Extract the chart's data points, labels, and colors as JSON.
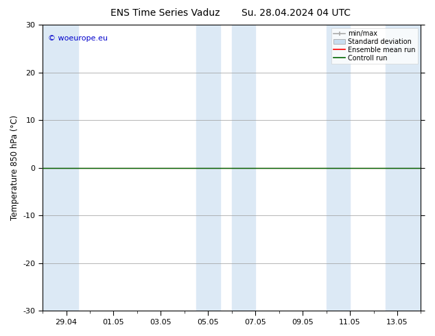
{
  "title_left": "ENS Time Series Vaduz",
  "title_right": "Su. 28.04.2024 04 UTC",
  "ylabel": "Temperature 850 hPa (°C)",
  "ylim": [
    -30,
    30
  ],
  "yticks": [
    -30,
    -20,
    -10,
    0,
    10,
    20,
    30
  ],
  "bg_color": "#ffffff",
  "plot_bg_color": "#ffffff",
  "shading_color": "#dce9f5",
  "legend_labels": [
    "min/max",
    "Standard deviation",
    "Ensemble mean run",
    "Controll run"
  ],
  "legend_colors": [
    "#aaaaaa",
    "#bbccdd",
    "#ff0000",
    "#006600"
  ],
  "watermark": "© woeurope.eu",
  "watermark_color": "#0000cc",
  "x_tick_labels": [
    "29.04",
    "01.05",
    "03.05",
    "05.05",
    "07.05",
    "09.05",
    "11.05",
    "13.05"
  ],
  "xtick_pos": [
    1,
    3,
    5,
    7,
    9,
    11,
    13,
    15
  ],
  "xlim": [
    0,
    16
  ],
  "shaded_regions": [
    [
      0.0,
      1.5
    ],
    [
      6.5,
      7.5
    ],
    [
      8.0,
      9.0
    ],
    [
      12.0,
      13.0
    ],
    [
      14.5,
      16.0
    ]
  ],
  "control_run_y": 0.0,
  "ensemble_mean_y": 0.0,
  "title_fontsize": 10,
  "label_fontsize": 8,
  "legend_fontsize": 7,
  "watermark_fontsize": 8
}
